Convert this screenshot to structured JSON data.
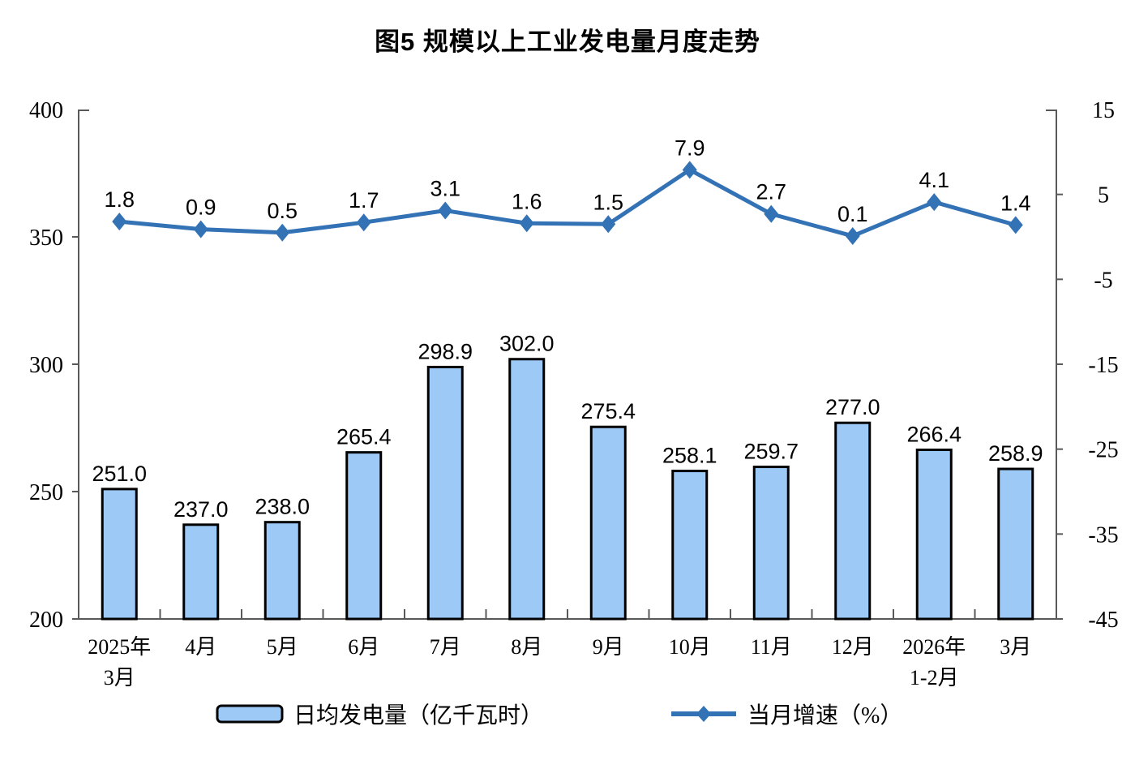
{
  "title": "图5  规模以上工业发电量月度走势",
  "legend": {
    "bar_label": "日均发电量（亿千瓦时）",
    "line_label": "当月增速（%）"
  },
  "colors": {
    "bar_fill": "#9DC9F7",
    "bar_border": "#000000",
    "line": "#3372B5",
    "axis": "#595959",
    "text": "#000000"
  },
  "chart_data": {
    "type": "bar",
    "subtype": "bar-line-combo-dual-axis",
    "title": "图5  规模以上工业发电量月度走势",
    "categories": [
      [
        "2025年",
        "3月"
      ],
      [
        "4月"
      ],
      [
        "5月"
      ],
      [
        "6月"
      ],
      [
        "7月"
      ],
      [
        "8月"
      ],
      [
        "9月"
      ],
      [
        "10月"
      ],
      [
        "11月"
      ],
      [
        "12月"
      ],
      [
        "2026年",
        "1-2月"
      ],
      [
        "3月"
      ]
    ],
    "series": [
      {
        "name": "日均发电量（亿千瓦时）",
        "type": "bar",
        "axis": "left",
        "values": [
          251.0,
          237.0,
          238.0,
          265.4,
          298.9,
          302.0,
          275.4,
          258.1,
          259.7,
          277.0,
          266.4,
          258.9
        ]
      },
      {
        "name": "当月增速（%）",
        "type": "line",
        "axis": "right",
        "values": [
          1.8,
          0.9,
          0.5,
          1.7,
          3.1,
          1.6,
          1.5,
          7.9,
          2.7,
          0.1,
          4.1,
          1.4
        ]
      }
    ],
    "left_axis": {
      "min": 200,
      "max": 400,
      "ticks": [
        200,
        250,
        300,
        350,
        400
      ]
    },
    "right_axis": {
      "min": -45,
      "max": 15,
      "ticks": [
        -45,
        -35,
        -25,
        -15,
        -5,
        5,
        15
      ]
    },
    "grid": false,
    "legend_position": "bottom",
    "data_labels": true
  }
}
